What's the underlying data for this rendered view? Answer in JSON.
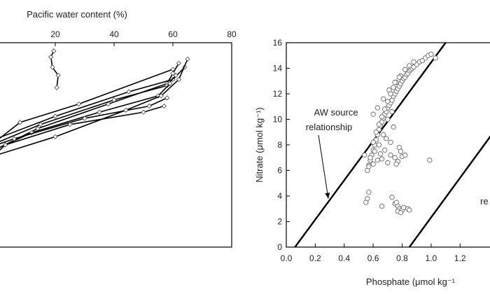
{
  "chart_data": [
    {
      "type": "line",
      "title": "",
      "xlabel": "Pacific water content (%)",
      "ylabel": "",
      "xlim": [
        0,
        80
      ],
      "x_ticks": [
        20,
        40,
        60,
        80
      ],
      "x_axis_position": "top",
      "ylim": [
        0,
        1
      ],
      "y_reversed": true,
      "y_note": "depth axis, tick labels not visible",
      "series": [
        {
          "x": [
            19.5,
            18.5,
            19.0,
            21.0,
            20.5
          ],
          "y": [
            0.04,
            0.07,
            0.12,
            0.16,
            0.22
          ]
        },
        {
          "x": [
            62,
            60,
            58,
            38,
            14,
            0
          ],
          "y": [
            0.1,
            0.15,
            0.2,
            0.3,
            0.42,
            0.52
          ]
        },
        {
          "x": [
            64,
            60,
            45,
            20,
            0
          ],
          "y": [
            0.12,
            0.18,
            0.24,
            0.36,
            0.47
          ]
        },
        {
          "x": [
            61,
            58,
            40,
            15,
            0
          ],
          "y": [
            0.16,
            0.21,
            0.28,
            0.4,
            0.49
          ]
        },
        {
          "x": [
            59,
            55,
            35,
            12,
            0
          ],
          "y": [
            0.2,
            0.26,
            0.34,
            0.44,
            0.52
          ]
        },
        {
          "x": [
            58,
            52,
            30,
            6,
            0
          ],
          "y": [
            0.27,
            0.31,
            0.37,
            0.47,
            0.5
          ]
        },
        {
          "x": [
            57,
            50,
            25,
            3,
            0
          ],
          "y": [
            0.31,
            0.34,
            0.4,
            0.5,
            0.54
          ]
        },
        {
          "x": [
            60,
            28,
            8,
            0
          ],
          "y": [
            0.13,
            0.3,
            0.39,
            0.48
          ]
        },
        {
          "x": [
            65,
            62,
            56,
            44,
            20,
            0
          ],
          "y": [
            0.08,
            0.18,
            0.26,
            0.33,
            0.46,
            0.55
          ]
        }
      ]
    },
    {
      "type": "scatter",
      "title": "",
      "xlabel": "Phosphate (μmol kg⁻¹",
      "ylabel": "Nitrate (μmol kg⁻¹)",
      "xlim": [
        0,
        1.45
      ],
      "ylim": [
        0,
        16
      ],
      "x_ticks": [
        0.0,
        0.2,
        0.4,
        0.6,
        0.8,
        1.0,
        1.2
      ],
      "y_ticks": [
        0,
        2,
        4,
        6,
        8,
        10,
        12,
        14,
        16
      ],
      "annotations": [
        {
          "text_line1": "AW source",
          "text_line2": "relationship",
          "arrow_to": [
            0.29,
            3.8
          ]
        },
        {
          "text": "re"
        }
      ],
      "reference_lines": [
        {
          "name": "AW source relationship",
          "points": [
            [
              0.06,
              0
            ],
            [
              1.1,
              16
            ]
          ]
        },
        {
          "points": [
            [
              0.85,
              0
            ],
            [
              1.45,
              9.3
            ]
          ]
        }
      ],
      "points": [
        [
          0.56,
          6.0
        ],
        [
          0.57,
          6.4
        ],
        [
          0.58,
          6.8
        ],
        [
          0.59,
          7.2
        ],
        [
          0.6,
          7.6
        ],
        [
          0.61,
          8.0
        ],
        [
          0.62,
          8.4
        ],
        [
          0.63,
          8.8
        ],
        [
          0.64,
          9.2
        ],
        [
          0.65,
          9.5
        ],
        [
          0.66,
          9.8
        ],
        [
          0.67,
          10.1
        ],
        [
          0.68,
          10.4
        ],
        [
          0.69,
          10.6
        ],
        [
          0.7,
          10.9
        ],
        [
          0.71,
          11.1
        ],
        [
          0.72,
          11.3
        ],
        [
          0.73,
          11.5
        ],
        [
          0.74,
          11.8
        ],
        [
          0.75,
          12.0
        ],
        [
          0.76,
          12.2
        ],
        [
          0.77,
          12.4
        ],
        [
          0.78,
          12.6
        ],
        [
          0.79,
          12.8
        ],
        [
          0.8,
          13.0
        ],
        [
          0.81,
          13.2
        ],
        [
          0.82,
          13.3
        ],
        [
          0.83,
          13.5
        ],
        [
          0.84,
          13.6
        ],
        [
          0.85,
          13.8
        ],
        [
          0.86,
          13.9
        ],
        [
          0.87,
          14.0
        ],
        [
          0.88,
          14.1
        ],
        [
          0.9,
          14.3
        ],
        [
          0.92,
          14.5
        ],
        [
          0.94,
          14.6
        ],
        [
          0.96,
          14.8
        ],
        [
          0.98,
          15.0
        ],
        [
          1.0,
          15.1
        ],
        [
          1.03,
          14.8
        ],
        [
          0.62,
          9.0
        ],
        [
          0.64,
          9.6
        ],
        [
          0.66,
          10.2
        ],
        [
          0.68,
          10.8
        ],
        [
          0.7,
          11.4
        ],
        [
          0.72,
          12.0
        ],
        [
          0.74,
          12.5
        ],
        [
          0.76,
          12.9
        ],
        [
          0.79,
          13.4
        ],
        [
          0.82,
          13.9
        ],
        [
          0.85,
          14.2
        ],
        [
          0.88,
          14.5
        ],
        [
          0.6,
          10.4
        ],
        [
          0.63,
          10.9
        ],
        [
          0.67,
          11.6
        ],
        [
          0.71,
          12.3
        ],
        [
          0.75,
          12.9
        ],
        [
          0.78,
          13.3
        ],
        [
          0.7,
          10.0
        ],
        [
          0.73,
          10.6
        ],
        [
          0.54,
          7.2
        ],
        [
          0.58,
          7.0
        ],
        [
          0.61,
          7.5
        ],
        [
          0.63,
          6.8
        ],
        [
          0.65,
          7.3
        ],
        [
          0.68,
          7.6
        ],
        [
          0.72,
          7.2
        ],
        [
          0.75,
          7.0
        ],
        [
          0.77,
          6.7
        ],
        [
          0.8,
          7.1
        ],
        [
          0.57,
          6.3
        ],
        [
          0.6,
          6.5
        ],
        [
          0.76,
          6.5
        ],
        [
          0.79,
          7.5
        ],
        [
          0.82,
          7.2
        ],
        [
          0.69,
          8.5
        ],
        [
          0.72,
          8.2
        ],
        [
          0.67,
          8.8
        ],
        [
          0.74,
          9.4
        ],
        [
          0.64,
          8.0
        ],
        [
          0.6,
          8.2
        ],
        [
          0.78,
          7.8
        ],
        [
          0.66,
          6.9
        ],
        [
          0.7,
          6.6
        ],
        [
          0.99,
          6.8
        ],
        [
          0.73,
          3.9
        ],
        [
          0.75,
          3.4
        ],
        [
          0.77,
          3.2
        ],
        [
          0.78,
          3.0
        ],
        [
          0.8,
          2.9
        ],
        [
          0.77,
          2.8
        ],
        [
          0.79,
          2.7
        ],
        [
          0.81,
          3.1
        ],
        [
          0.84,
          3.0
        ],
        [
          0.85,
          2.9
        ],
        [
          0.76,
          3.5
        ],
        [
          0.55,
          3.5
        ],
        [
          0.56,
          3.8
        ],
        [
          0.57,
          4.3
        ],
        [
          0.66,
          3.2
        ]
      ]
    }
  ]
}
